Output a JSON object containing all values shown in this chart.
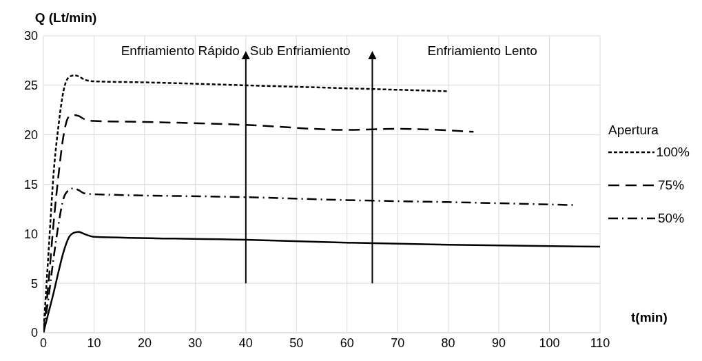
{
  "chart_data": {
    "type": "line",
    "ylabel": "Q (Lt/min)",
    "xlabel": "t(min)",
    "legend_title": "Apertura",
    "legend": "right",
    "grid": true,
    "marker": "none",
    "xlim": [
      0,
      110
    ],
    "xticks": [
      0,
      10,
      20,
      30,
      40,
      50,
      60,
      70,
      80,
      90,
      100,
      110
    ],
    "ylim": [
      0,
      30
    ],
    "yticks": [
      0,
      5,
      10,
      15,
      20,
      25,
      30
    ],
    "annotations": [
      "Enfriamiento Rápido",
      "Sub Enfriamiento",
      "Enfriamiento Lento"
    ],
    "ref_lines": [
      {
        "axis": "x",
        "value": 40,
        "color": "#000000"
      },
      {
        "axis": "x",
        "value": 65,
        "color": "#000000"
      }
    ],
    "series": [
      {
        "name": "100%",
        "color": "#000000",
        "line_style": "dotted",
        "x": [
          0,
          1,
          2,
          3,
          4,
          5,
          6,
          7,
          8,
          10,
          20,
          40,
          60,
          80
        ],
        "values": [
          0,
          8,
          16,
          21,
          24.5,
          25.8,
          26,
          25.9,
          25.6,
          25.4,
          25.3,
          25,
          24.7,
          24.4
        ]
      },
      {
        "name": "75%",
        "color": "#000000",
        "line_style": "dashed",
        "x": [
          0,
          1,
          2,
          3,
          4,
          5,
          6,
          7,
          8,
          10,
          20,
          40,
          60,
          70,
          85
        ],
        "values": [
          0,
          5,
          11,
          16,
          20,
          21.8,
          22,
          21.9,
          21.6,
          21.4,
          21.3,
          21,
          20.5,
          20.6,
          20.3
        ]
      },
      {
        "name": "50%",
        "color": "#000000",
        "line_style": "dashdot",
        "x": [
          0,
          1,
          2,
          3,
          4,
          5,
          6,
          7,
          8,
          10,
          40,
          60,
          80,
          105
        ],
        "values": [
          0,
          3.5,
          7.5,
          11,
          13.6,
          14.4,
          14.6,
          14.4,
          14.1,
          14,
          13.7,
          13.4,
          13.2,
          12.9
        ]
      },
      {
        "color": "#000000",
        "line_style": "solid",
        "x": [
          0,
          1,
          2,
          3,
          4,
          5,
          6,
          7,
          8,
          10,
          40,
          60,
          80,
          110
        ],
        "values": [
          0,
          2,
          4,
          6.2,
          8.2,
          9.6,
          10.1,
          10.2,
          10,
          9.7,
          9.4,
          9.1,
          8.9,
          8.7
        ]
      }
    ]
  }
}
